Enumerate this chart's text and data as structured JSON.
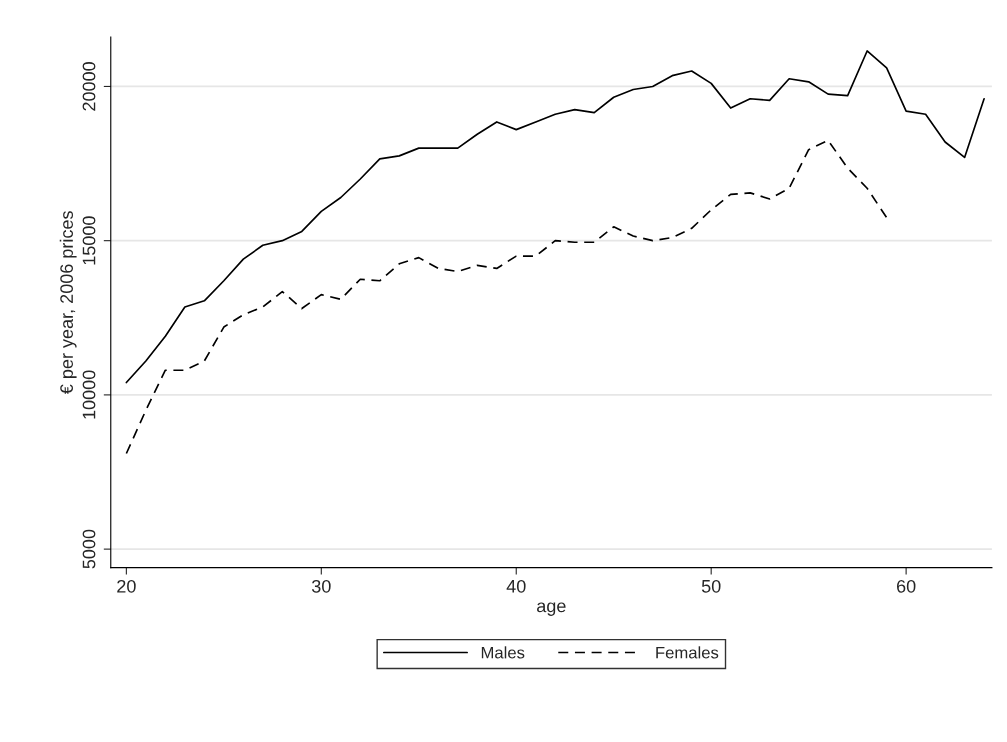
{
  "chart_data": {
    "type": "line",
    "xlabel": "age",
    "ylabel": "€ per year, 2006 prices",
    "x": [
      20,
      21,
      22,
      23,
      24,
      25,
      26,
      27,
      28,
      29,
      30,
      31,
      32,
      33,
      34,
      35,
      36,
      37,
      38,
      39,
      40,
      41,
      42,
      43,
      44,
      45,
      46,
      47,
      48,
      49,
      50,
      51,
      52,
      53,
      54,
      55,
      56,
      57,
      58,
      59,
      60,
      61,
      62,
      63,
      64
    ],
    "series": [
      {
        "name": "Males",
        "color": "#000000",
        "line_style": "solid",
        "values": [
          10400,
          11100,
          11900,
          12850,
          13050,
          13700,
          14400,
          14850,
          15000,
          15300,
          15950,
          16400,
          17000,
          17650,
          17750,
          18000,
          18000,
          18000,
          18450,
          18850,
          18600,
          18850,
          19100,
          19250,
          19150,
          19650,
          19900,
          20000,
          20350,
          20500,
          20100,
          19300,
          19600,
          19550,
          20250,
          20150,
          19750,
          19700,
          21150,
          20600,
          19200,
          19100,
          18200,
          17700,
          19600
        ]
      },
      {
        "name": "Females",
        "color": "#000000",
        "line_style": "dashed",
        "values": [
          8100,
          9500,
          10800,
          10800,
          11100,
          12200,
          12600,
          12850,
          13350,
          12800,
          13250,
          13100,
          13750,
          13700,
          14250,
          14450,
          14100,
          14000,
          14200,
          14100,
          14500,
          14500,
          15000,
          14950,
          14950,
          15450,
          15150,
          15000,
          15100,
          15400,
          16000,
          16500,
          16550,
          16350,
          16700,
          17950,
          18250,
          17350,
          16700,
          15750,
          null,
          null,
          null,
          null,
          null
        ]
      }
    ],
    "xlim": [
      19.2,
      64.4
    ],
    "ylim": [
      4400,
      21600
    ],
    "xticks": [
      20,
      30,
      40,
      50,
      60
    ],
    "yticks": [
      5000,
      10000,
      15000,
      20000
    ],
    "grid": "y",
    "legend": "bottom"
  }
}
